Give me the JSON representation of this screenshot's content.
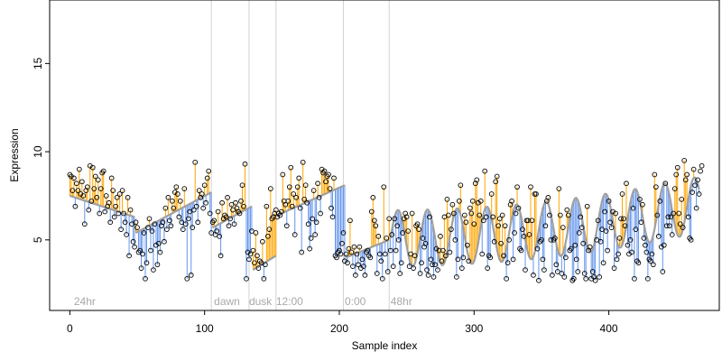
{
  "chart_data": {
    "type": "scatter",
    "title": "",
    "xlabel": "Sample index",
    "ylabel": "Expression",
    "xlim": [
      -15,
      482
    ],
    "ylim": [
      1.0,
      18.6
    ],
    "x_ticks": [
      0,
      100,
      200,
      300,
      400
    ],
    "y_ticks": [
      5,
      10,
      15
    ],
    "grid": false,
    "legend": "none",
    "colors": {
      "above": "#ffa500",
      "below": "#6495ed",
      "fit": "#a0a0a0",
      "divider": "#d3d3d3",
      "annotation": "#a9a9a9",
      "point_edge": "#000000",
      "frame": "#000000"
    },
    "dividers": [
      105,
      133,
      153,
      203,
      237
    ],
    "annotations": [
      {
        "x": 3,
        "label": "24hr"
      },
      {
        "x": 107,
        "label": "dawn"
      },
      {
        "x": 133,
        "label": "dusk"
      },
      {
        "x": 153,
        "label": "12:00"
      },
      {
        "x": 204,
        "label": "0:00"
      },
      {
        "x": 238,
        "label": "48hr"
      }
    ],
    "segments": [
      {
        "start": 0,
        "end": 48,
        "fit": [
          7.5,
          6.3
        ]
      },
      {
        "start": 49,
        "end": 105,
        "fit": [
          5.4,
          7.7
        ]
      },
      {
        "start": 106,
        "end": 135,
        "fit": [
          5.7,
          6.9
        ]
      },
      {
        "start": 136,
        "end": 153,
        "fit": [
          3.3,
          4.1
        ]
      },
      {
        "start": 154,
        "end": 204,
        "fit": [
          6.4,
          8.1
        ]
      },
      {
        "start": 205,
        "end": 237,
        "fit": [
          4.0,
          5.0
        ]
      },
      {
        "start": 238,
        "end": 467,
        "fit_note": "oscillating"
      }
    ],
    "oscillation": {
      "base": 5.1,
      "amplitude": 1.6,
      "period": 22,
      "trend_end": 7.0
    },
    "series": [
      {
        "values": [
          8.7,
          8.6,
          7.8,
          8.5,
          6.9,
          8.2,
          7.8,
          9.0,
          7.6,
          8.3,
          7.5,
          5.9,
          7.8,
          8.0,
          6.7,
          9.2,
          7.2,
          9.1,
          7.9,
          8.6,
          7.4,
          8.4,
          6.5,
          7.9,
          8.8,
          8.9,
          6.6,
          7.5,
          6.9,
          7.1,
          6.0,
          8.5,
          7.8,
          6.3,
          6.9,
          7.4,
          6.5,
          7.6,
          5.6,
          7.8,
          6.5,
          6.0,
          5.3,
          7.4,
          4.1,
          6.7,
          5.9,
          4.9,
          4.6,
          6.0,
          5.7,
          4.3,
          4.4,
          3.4,
          4.2,
          5.4,
          2.8,
          3.7,
          5.7,
          6.2,
          4.4,
          5.5,
          3.3,
          5.9,
          4.7,
          3.6,
          4.8,
          4.3,
          5.8,
          6.0,
          4.9,
          6.8,
          5.6,
          7.4,
          6.1,
          5.8,
          7.2,
          6.8,
          7.7,
          8.0,
          7.6,
          6.3,
          7.2,
          6.0,
          5.6,
          7.9,
          5.9,
          2.8,
          6.2,
          6.6,
          3.0,
          5.7,
          6.7,
          9.4,
          6.9,
          6.0,
          7.8,
          7.4,
          7.6,
          6.8,
          8.1,
          7.1,
          8.5,
          8.9,
          6.5,
          5.4,
          6.0,
          6.1,
          5.3,
          5.5,
          6.6,
          5.2,
          4.1,
          7.1,
          6.2,
          6.4,
          6.3,
          7.4,
          5.8,
          6.2,
          7.0,
          6.7,
          5.9,
          7.1,
          6.8,
          6.6,
          6.5,
          7.2,
          8.1,
          6.9,
          9.3,
          2.8,
          4.3,
          3.9,
          4.2,
          5.5,
          4.4,
          3.7,
          5.4,
          4.1,
          3.4,
          3.8,
          3.7,
          4.9,
          2.8,
          3.6,
          6.9,
          5.2,
          5.6,
          7.9,
          6.2,
          6.3,
          6.5,
          6.7,
          6.3,
          6.5,
          6.4,
          6.6,
          8.7,
          7.2,
          7.0,
          5.8,
          7.2,
          8.0,
          9.1,
          6.9,
          7.6,
          5.3,
          7.4,
          8.0,
          8.5,
          6.8,
          4.3,
          9.4,
          7.3,
          8.1,
          7.1,
          5.9,
          4.5,
          5.1,
          6.2,
          7.8,
          5.3,
          6.0,
          8.2,
          7.4,
          6.5,
          9.0,
          8.8,
          8.9,
          8.3,
          8.6,
          8.7,
          7.9,
          6.8,
          6.3,
          8.5,
          4.1,
          4.0,
          4.3,
          4.4,
          4.2,
          4.8,
          5.4,
          3.8,
          4.2,
          3.7,
          4.5,
          6.1,
          4.3,
          3.5,
          4.6,
          3.0,
          4.2,
          3.6,
          4.6,
          3.4,
          3.9,
          3.5,
          3.0,
          4.3,
          4.4,
          4.1,
          4.0,
          6.6,
          7.4,
          6.1,
          5.8,
          3.1,
          5.2,
          4.2,
          3.8,
          2.8,
          8.0,
          4.2,
          5.1,
          3.2,
          6.2,
          4.4,
          5.3,
          3.5,
          6.2,
          4.4,
          5.8,
          5.0,
          3.1,
          3.7,
          5.4,
          6.2,
          6.5,
          6.3,
          5.5,
          3.5,
          4.2,
          6.5,
          3.4,
          4.1,
          5.8,
          5.9,
          5.6,
          3.1,
          3.7,
          5.1,
          4.6,
          4.8,
          3.3,
          3.0,
          6.3,
          3.9,
          3.6,
          2.9,
          3.6,
          4.5,
          3.3,
          4.4,
          5.2,
          3.8,
          4.4,
          6.3,
          4.1,
          7.3,
          6.4,
          4.3,
          5.6,
          7.0,
          6.5,
          5.0,
          2.9,
          3.9,
          7.2,
          8.1,
          3.4,
          4.0,
          6.4,
          6.0,
          4.7,
          3.8,
          6.8,
          6.5,
          7.2,
          5.9,
          8.2,
          8.4,
          7.1,
          6.4,
          7.2,
          4.2,
          6.1,
          8.9,
          6.3,
          3.4,
          4.1,
          4.0,
          7.6,
          6.3,
          4.9,
          8.3,
          8.6,
          5.8,
          6.2,
          4.8,
          6.4,
          4.1,
          5.8,
          2.8,
          3.7,
          5.0,
          7.0,
          7.2,
          3.9,
          5.4,
          6.5,
          8.0,
          6.8,
          4.5,
          4.4,
          5.6,
          5.2,
          3.3,
          6.1,
          6.1,
          5.3,
          8.0,
          6.1,
          3.0,
          7.6,
          7.6,
          4.5,
          2.7,
          4.9,
          5.0,
          3.9,
          3.3,
          5.8,
          7.2,
          7.4,
          6.4,
          5.0,
          3.0,
          5.0,
          5.1,
          3.6,
          3.2,
          7.9,
          6.4,
          3.1,
          5.7,
          2.9,
          4.0,
          6.7,
          6.4,
          4.4,
          4.5,
          2.7,
          2.8,
          4.7,
          3.9,
          3.2,
          5.4,
          6.3,
          5.7,
          4.8,
          3.1,
          2.8,
          6.9,
          4.4,
          4.6,
          2.8,
          3.2,
          2.9,
          2.7,
          5.0,
          6.1,
          2.9,
          4.9,
          5.6,
          3.7,
          6.6,
          5.5,
          4.4,
          7.2,
          6.0,
          5.7,
          6.6,
          3.4,
          6.5,
          3.9,
          4.2,
          5.1,
          6.2,
          7.6,
          6.2,
          5.8,
          8.2,
          4.7,
          4.2,
          5.0,
          4.3,
          6.8,
          2.8,
          5.6,
          3.8,
          3.7,
          7.3,
          6.0,
          7.0,
          5.1,
          4.7,
          4.3,
          2.8,
          3.9,
          3.8,
          4.2,
          3.6,
          8.7,
          8.0,
          6.4,
          5.2,
          7.2,
          4.6,
          3.2,
          4.7,
          8.2,
          5.8,
          6.3,
          5.8,
          6.3,
          5.3,
          6.5,
          7.9,
          8.7,
          9.1,
          6.5,
          5.9,
          7.3,
          5.7,
          9.5,
          8.4,
          8.7,
          6.3,
          5.1,
          5.0,
          7.7,
          9.0,
          8.1,
          6.8,
          8.4,
          7.6,
          8.9,
          9.2
        ]
      }
    ]
  }
}
